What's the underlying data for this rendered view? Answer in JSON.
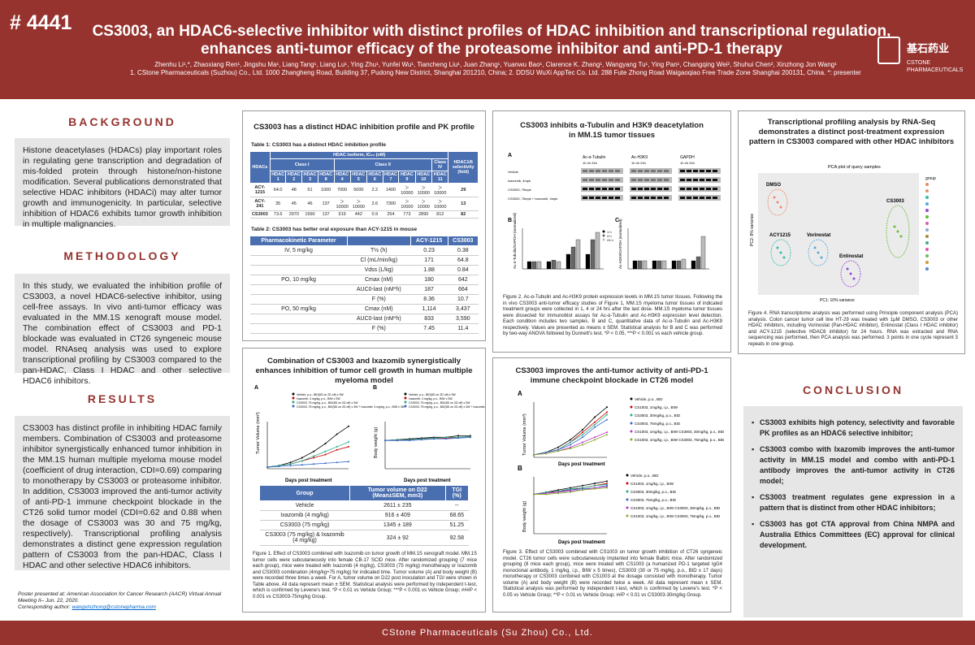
{
  "header": {
    "poster_number": "# 4441",
    "title_line1": "CS3003, an HDAC6-selective inhibitor with distinct profiles of HDAC inhibition and transcriptional regulation,",
    "title_line2": "enhances anti-tumor efficacy of the proteasome inhibitor and anti-PD-1 therapy",
    "authors": "Zhenhu Li¹,*, Zhaoxiang Ren¹, Jingshu Ma¹, Liang Tang¹, Liang Lu¹, Ying Zhu¹, Yunfei Wu¹, Tiancheng Liu¹, Juan Zhang¹, Yuanwu Bao¹, Clarence K. Zhang¹, Wangyang Tu¹, Ying Pan¹, Changqing Wei², Shuhui Chen², Xinzhong Jon Wang¹",
    "affiliations": "1. CStone Pharmaceuticals (Suzhou) Co., Ltd. 1000 Zhangheng Road, Building 37, Pudong New District, Shanghai 201210, China; 2. DDSU WuXi AppTec Co. Ltd. 288 Fute Zhong Road Waigaoqiao Free Trade Zone Shanghai 200131, China. *: presenter",
    "logo_cn": "基石药业",
    "logo_en1": "CSTONE",
    "logo_en2": "PHARMACEUTICALS"
  },
  "background": {
    "heading": "BACKGROUND",
    "text": "Histone deacetylases (HDACs) play important roles in regulating gene transcription and degradation of mis-folded protein through histone/non-histone modification. Several publications demonstrated that selective HDAC inhibitors (HDACi) may alter tumor growth and immunogenicity. In particular, selective inhibition of HDAC6 exhibits tumor growth inhibition in multiple malignancies."
  },
  "methodology": {
    "heading": "METHODOLOGY",
    "text": "In this study, we evaluated the inhibition profile of CS3003, a novel HDAC6-selective inhibitor, using cell-free assays. In vivo anti-tumor efficacy was evaluated in the MM.1S xenograft mouse model. The combination effect of CS3003 and PD-1 blockade was evaluated in CT26 syngeneic mouse model. RNAseq analysis was used to explore transcriptional profiling by CS3003 compared to the pan-HDAC, Class I HDAC and other selective HDAC6 inhibitors."
  },
  "results": {
    "heading": "RESULTS",
    "text": "CS3003 has distinct profile in inhibiting HDAC family members. Combination of CS3003 and proteasome inhibitor synergistically enhanced tumor inhibition in the MM.1S human multiple myeloma mouse model (coefficient of drug interaction, CDI=0.69) comparing to monotherapy by CS3003 or proteasome inhibitor. In addition, CS3003 improved the anti-tumor activity of anti-PD-1 immune checkpoint blockade in the CT26 solid tumor model (CDI=0.62 and 0.88 when the dosage of CS3003 was 30 and 75 mg/kg, respectively). Transcriptional profiling analysis demonstrates a distinct gene expression regulation pattern of CS3003 from the pan-HDAC, Class I HDAC and other selective HDAC6 inhibitors."
  },
  "note": {
    "line1": "Poster presented at: American Association for Cancer Research (AACR) Virtual Annual Meeting II– Jun. 22, 2020.",
    "line2": "Corresponding author: ",
    "email": "wangxinzhong@cstonepharma.com"
  },
  "panel1": {
    "title": "CS3003 has a distinct HDAC inhibition profile and PK profile",
    "table1_caption": "Table 1: CS3003 has a distinct HDAC inhibition profile",
    "t1_head_hdacs": "HDACs",
    "t1_head_iso": "HDAC isoform, IC₅₀ (nM)",
    "t1_head_sel": "HDAC1/6 selectivity (fold)",
    "t1_classes": [
      "Class I",
      "Class II",
      "Class IV"
    ],
    "t1_cols": [
      "HDAC 1",
      "HDAC 2",
      "HDAC 3",
      "HDAC 8",
      "HDAC 4",
      "HDAC 5",
      "HDAC 6",
      "HDAC 7",
      "HDAC 9",
      "HDAC 10",
      "HDAC 11"
    ],
    "t1_rows": [
      {
        "name": "ACY-1215",
        "vals": [
          "64.0",
          "48",
          "51",
          "1000",
          "7000",
          "5000",
          "2.2",
          "1400",
          "＞10000",
          "＞10000",
          "＞10000"
        ],
        "sel": "29"
      },
      {
        "name": "ACY-241",
        "vals": [
          "35",
          "45",
          "46",
          "137",
          "＞10000",
          "＞10000",
          "2.6",
          "7300",
          "＞10000",
          "＞10000",
          "＞10000"
        ],
        "sel": "13"
      },
      {
        "name": "CS3003",
        "vals": [
          "73.6",
          "2970",
          "1990",
          "137",
          "919",
          "442",
          "0.9",
          "254",
          "773",
          "2890",
          "812"
        ],
        "sel": "82"
      }
    ],
    "table2_caption": "Table 2: CS3003 has better oral exposure than ACY-1215 in mouse",
    "t2_head": [
      "Pharmacokinetic Parameter",
      "",
      "ACY-1215",
      "CS3003"
    ],
    "t2_rows": [
      {
        "grp": "IV, 5 mg/kg",
        "p": "T½ (h)",
        "a": "0.23",
        "b": "0.38"
      },
      {
        "grp": "",
        "p": "Cl (mL/min/kg)",
        "a": "171",
        "b": "64.8"
      },
      {
        "grp": "",
        "p": "Vdss (L/kg)",
        "a": "1.88",
        "b": "0.84"
      },
      {
        "grp": "PO, 10 mg/kg",
        "p": "Cmax (nM)",
        "a": "180",
        "b": "642"
      },
      {
        "grp": "",
        "p": "AUC0-last (nM*h)",
        "a": "187",
        "b": "664"
      },
      {
        "grp": "",
        "p": "F (%)",
        "a": "8.36",
        "b": "10.7"
      },
      {
        "grp": "PO, 50 mg/kg",
        "p": "Cmax (nM)",
        "a": "1,114",
        "b": "3,437"
      },
      {
        "grp": "",
        "p": "AUC0-last (nM*h)",
        "a": "833",
        "b": "3,590"
      },
      {
        "grp": "",
        "p": "F (%)",
        "a": "7.45",
        "b": "11.4"
      }
    ]
  },
  "panel2": {
    "title": "Combination of CS3003 and Ixazomib synergistically enhances inhibition of tumor cell growth in human multiple myeloma model",
    "label_a": "A",
    "label_b": "B",
    "ylabel_a": "Tumor Volume (mm³)",
    "ylabel_b": "Body weight (g)",
    "xlabel": "Days post treatment",
    "legend": [
      "Vehicle, p.o., BID(5D on 2D off) x 3W",
      "Ixazomib, 4 mg/kg, p.o., BIW x 3W",
      "CS3003, 75 mg/kg, p.o., BID(5D on 2D off) x 3W",
      "CS3003, 75 mg/kg, p.o., BID(5D on 2D off) x 3W + Ixazomib, 4 mg/kg, p.o., BIW x 3W"
    ],
    "tbl_head": [
      "Group",
      "Tumor volume on D22 (Mean±SEM, mm3)",
      "TGI (%)"
    ],
    "tbl_rows": [
      [
        "Vehicle",
        "2611 ± 235",
        "--"
      ],
      [
        "Ixazomib (4 mg/kg)",
        "916 ± 409",
        "68.65"
      ],
      [
        "CS3003 (75 mg/kg)",
        "1345 ± 189",
        "51.25"
      ],
      [
        "CS3003 (75 mg/kg) & Ixazomib (4 mg/kg)",
        "324 ± 92",
        "92.58"
      ]
    ],
    "caption": "Figure 1. Effect of CS3003 combined with Ixazomib on tumor growth of MM.1S xenograft model. MM.1S tumor cells were subcutaneously into female CB-17 SCID mice. After randomized grouping (7 mice each group), mice were treated with Ixazomib (4 mg/kg), CS3003 (75 mg/kg) monotherapy or Ixazomib and CS3003 combination (4mg/kg+75 mg/kg) for indicated time. Tumor volume (A) and body weight (B) were recorded three times a week. For A, tumor volume on D22 post inoculation and TGI were shown in Table above. All data represent mean ± SEM. Statistical analysis were performed by independent t-test, which is confirmed by Levene's test. *P < 0.01 vs Vehicle Group; ***P < 0.001 vs Vehicle Group; ###P < 0.001 vs CS3003-75mg/kg Group."
  },
  "panel3": {
    "title": "CS3003 inhibits α-Tubulin and H3K9 deacetylation in MM.1S tumor tissues",
    "label_a": "A",
    "label_b": "B",
    "label_c": "C",
    "blot_heads": [
      "Ac-α-Tubulin",
      "Ac-H3K9",
      "GAPDH"
    ],
    "blot_times": "1h   4h   24h",
    "blot_rows": [
      "Vehicle",
      "Ixazomib, 4mpk",
      "CS3003, 75mpk",
      "CS3003, 75mpk + Ixazomib, 4mpk"
    ],
    "legend": [
      "1 h",
      "4 h",
      "24 h"
    ],
    "ylabel_b": "Ac-α-Tubulin/GAPDH (normalized)",
    "ylabel_c": "Ac-H3K9/GAPDH (normalized)",
    "caption": "Figure 2. Ac-α-Tubulin and Ac-H3K9 protein expression levels in MM.1S tumor tissues. Following the in vivo CS3003 anti-tumor efficacy studies of Figure 1, MM.1S myeloma tumor tissues of indicated treatment groups were collected in 1, 4 or 24 hrs after the last dose. MM.1S myeloma tumor tissues were dissected for immunoblot assays for Ac-α-Tubulin and Ac-H3K9 expression level detection. Each condition includes two samples. B and C, quantitative data of Ac-α-Tubulin and Ac-H3K9 respectively. Values are presented as means ± SEM. Statistical analysis for B and C was performed by two-way ANOVA followed by Dunnett's test. *P < 0.05, ***P < 0.001 vs each vehicle group."
  },
  "panel4": {
    "title": "CS3003 improves the anti-tumor activity of anti-PD-1 immune checkpoint blockade in CT26 model",
    "label_a": "A",
    "label_b": "B",
    "ylabel_a": "Tumor Volume (mm³)",
    "ylabel_b": "Body weight (g)",
    "xlabel": "Days post treatment",
    "legend": [
      "Vehicle, p.o., BID",
      "CS1003, 1mg/kg, i.p., BIW",
      "CS3003, 30mg/kg, p.o., BID",
      "CS3003, 75mg/kg, p.o., BID",
      "CS1003, 1mg/kg, i.p., BIW CS3003, 30mg/kg, p.o., BID",
      "CS1003, 1mg/kg, i.p., BIW CS3003, 75mg/kg, p.o., BID"
    ],
    "caption": "Figure 3. Effect of CS3003 combined with CS1003 on tumor growth inhibition of CT26 syngeneic model. CT26 tumor cells were subcutaneously implanted into female Balb/c mice. After randomized grouping (8 mice each group), mice were treated with CS1003 (a humanized PD-1 targeted IgG4 monoclonal antibody, 1 mg/kg, i.p., BIW x 5 times), CS3003 (30 or 75 mg/kg, p.o., BID x 17 days) monotherapy or CS3003 combined with CS1003 at the dosage consisted with monotherapy. Tumor volume (A) and body weight (B) were recorded twice a week. All data represent mean ± SEM. Statistical analysis was performed by independent t-test, which is confirmed by Levene's test. *P < 0.05 vs Vehicle Group; **P < 0.01 vs Vehicle Group; ##P < 0.01 vs CS3003-30mg/kg Group."
  },
  "panel5": {
    "title": "Transcriptional profiling analysis by RNA-Seq demonstrates a distinct post-treatment expression pattern in CS3003 compared with other HDAC inhibitors",
    "plot_title": "PCA plot of query samples",
    "xlabel": "PC1: 10% variance",
    "ylabel": "PC2: 8% variance",
    "clusters": [
      "DMSO",
      "ACY1215",
      "Vorinostat",
      "Entinostat",
      "CS3003"
    ],
    "legend_title": "group",
    "caption": "Figure 4. RNA transcriptome analysis was performed using Principle component analysis (PCA) analysis. Colon cancer tumor cell line HT-29 was treated with 1μM DMSO, CS3003 or other HDAC inhibitors, including Vorinostat (Pan-HDAC inhibitor), Entinostat (Class I HDAC inhibitor) and ACY-1215 (selective HDAC6 inhibitor) for 24 hours. RNA was extracted and RNA sequencing was performed, then PCA analysis was performed. 3 points in one cycle represent 3 repeats in one group."
  },
  "conclusion": {
    "heading": "CONCLUSION",
    "items": [
      "CS3003 exhibits high potency, selectivity and favorable PK profiles as an HDAC6 selective inhibitor;",
      "CS3003 combo with Ixazomib improves the anti-tumor activity in MM.1S model and combo with anti-PD-1 antibody improves the anti-tumor activity in CT26 model;",
      "CS3003 treatment regulates gene expression in a pattern that is distinct from other HDAC inhibitors;",
      "CS3003 has got CTA approval from China NMPA and Australia Ethics Committees (EC) approval for clinical development."
    ]
  },
  "footer": "CStone Pharmaceuticals (Su Zhou) Co., Ltd.",
  "colors": {
    "brand": "#96332f",
    "table_header": "#4a6fb0",
    "box_gray": "#e6e6e6"
  }
}
